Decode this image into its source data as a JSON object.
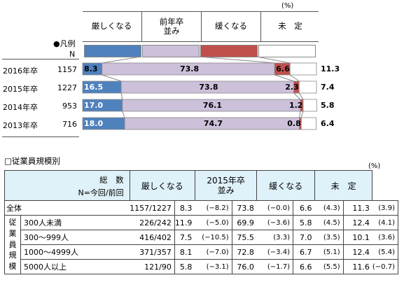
{
  "top_chart": {
    "percent_unit": "(%)",
    "legend_title": "●凡例",
    "n_label": "N",
    "columns": [
      "厳しくなる",
      "前年卒\n並み",
      "緩くなる",
      "未　定"
    ],
    "colors": {
      "strict": "#4f81bd",
      "same": "#ccc0da",
      "loose": "#c0504d",
      "undecided": "#ffffff"
    }
  },
  "chart_data": {
    "type": "bar",
    "stacked": true,
    "orientation": "horizontal",
    "categories": [
      "2016年卒",
      "2015年卒",
      "2014年卒",
      "2013年卒"
    ],
    "n": [
      "1157",
      "1227",
      "953",
      "716"
    ],
    "series": [
      {
        "name": "厳しくなる",
        "values": [
          8.3,
          16.5,
          17.0,
          18.0
        ],
        "labels": [
          "8.3",
          "16.5",
          "17.0",
          "18.0"
        ]
      },
      {
        "name": "前年卒並み",
        "values": [
          73.8,
          73.8,
          76.1,
          74.7
        ],
        "labels": [
          "73.8",
          "73.8",
          "76.1",
          "74.7"
        ]
      },
      {
        "name": "緩くなる",
        "values": [
          6.6,
          2.3,
          1.2,
          0.8
        ],
        "labels": [
          "6.6",
          "2.3",
          "1.2",
          "0.8"
        ]
      },
      {
        "name": "未定",
        "values": [
          11.3,
          7.4,
          5.8,
          6.4
        ],
        "labels": [
          "11.3",
          "7.4",
          "5.8",
          "6.4"
        ]
      }
    ],
    "xlim": [
      0,
      100
    ]
  },
  "table": {
    "section_title": "□従業員規模別",
    "percent_unit": "(%)",
    "header": {
      "total_label": "総　数",
      "n_label": "N=今回/前回",
      "cols": [
        "厳しくなる",
        "2015年卒\n並み",
        "緩くなる",
        "未　定"
      ]
    },
    "group_label": [
      "従",
      "業",
      "員",
      "規",
      "模"
    ],
    "rows": [
      {
        "label": "全体",
        "n": "1157/1227",
        "cells": [
          [
            "8.3",
            "(−8.2)"
          ],
          [
            "73.8",
            "(−0.0)"
          ],
          [
            "6.6",
            "(4.3)"
          ],
          [
            "11.3",
            "(3.9)"
          ]
        ]
      },
      {
        "label": "300人未満",
        "n": "226/242",
        "cells": [
          [
            "11.9",
            "(−5.0)"
          ],
          [
            "69.9",
            "(−3.6)"
          ],
          [
            "5.8",
            "(4.5)"
          ],
          [
            "12.4",
            "(4.1)"
          ]
        ]
      },
      {
        "label": "300～999人",
        "n": "416/402",
        "cells": [
          [
            "7.5",
            "(−10.5)"
          ],
          [
            "75.5",
            "(3.3)"
          ],
          [
            "7.0",
            "(3.5)"
          ],
          [
            "10.1",
            "(3.6)"
          ]
        ]
      },
      {
        "label": "1000～4999人",
        "n": "371/357",
        "cells": [
          [
            "8.1",
            "(−7.0)"
          ],
          [
            "72.8",
            "(−3.4)"
          ],
          [
            "6.7",
            "(5.1)"
          ],
          [
            "12.4",
            "(5.4)"
          ]
        ]
      },
      {
        "label": "5000人以上",
        "n": "121/90",
        "cells": [
          [
            "5.8",
            "(−3.1)"
          ],
          [
            "76.0",
            "(−1.7)"
          ],
          [
            "6.6",
            "(5.5)"
          ],
          [
            "11.6",
            "(−0.7)"
          ]
        ]
      }
    ]
  }
}
